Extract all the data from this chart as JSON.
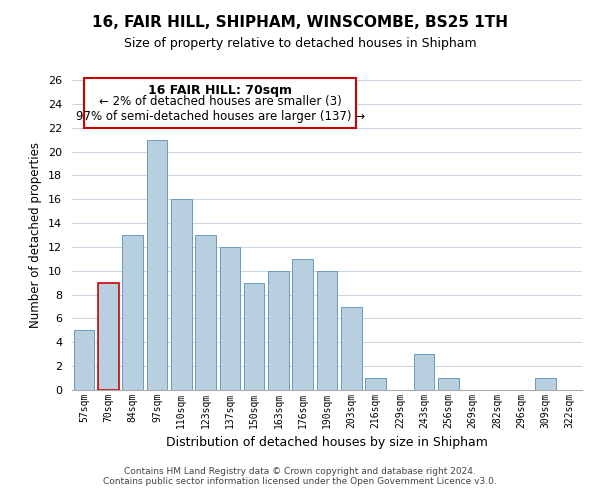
{
  "title": "16, FAIR HILL, SHIPHAM, WINSCOMBE, BS25 1TH",
  "subtitle": "Size of property relative to detached houses in Shipham",
  "xlabel": "Distribution of detached houses by size in Shipham",
  "ylabel": "Number of detached properties",
  "categories": [
    "57sqm",
    "70sqm",
    "84sqm",
    "97sqm",
    "110sqm",
    "123sqm",
    "137sqm",
    "150sqm",
    "163sqm",
    "176sqm",
    "190sqm",
    "203sqm",
    "216sqm",
    "229sqm",
    "243sqm",
    "256sqm",
    "269sqm",
    "282sqm",
    "296sqm",
    "309sqm",
    "322sqm"
  ],
  "values": [
    5,
    9,
    13,
    21,
    16,
    13,
    12,
    9,
    10,
    11,
    10,
    7,
    1,
    0,
    3,
    1,
    0,
    0,
    0,
    1,
    0
  ],
  "highlight_index": 1,
  "bar_color": "#b8cfe0",
  "highlight_bar_color": "#b8cfe0",
  "edge_color": "#6a9bbf",
  "highlight_edge_color": "#cc0000",
  "ylim": [
    0,
    26
  ],
  "yticks": [
    0,
    2,
    4,
    6,
    8,
    10,
    12,
    14,
    16,
    18,
    20,
    22,
    24,
    26
  ],
  "annotation_title": "16 FAIR HILL: 70sqm",
  "annotation_line1": "← 2% of detached houses are smaller (3)",
  "annotation_line2": "97% of semi-detached houses are larger (137) →",
  "annotation_box_color": "#ffffff",
  "annotation_box_edge": "#cc0000",
  "footer1": "Contains HM Land Registry data © Crown copyright and database right 2024.",
  "footer2": "Contains public sector information licensed under the Open Government Licence v3.0.",
  "background_color": "#ffffff",
  "grid_color": "#c8d4e0"
}
